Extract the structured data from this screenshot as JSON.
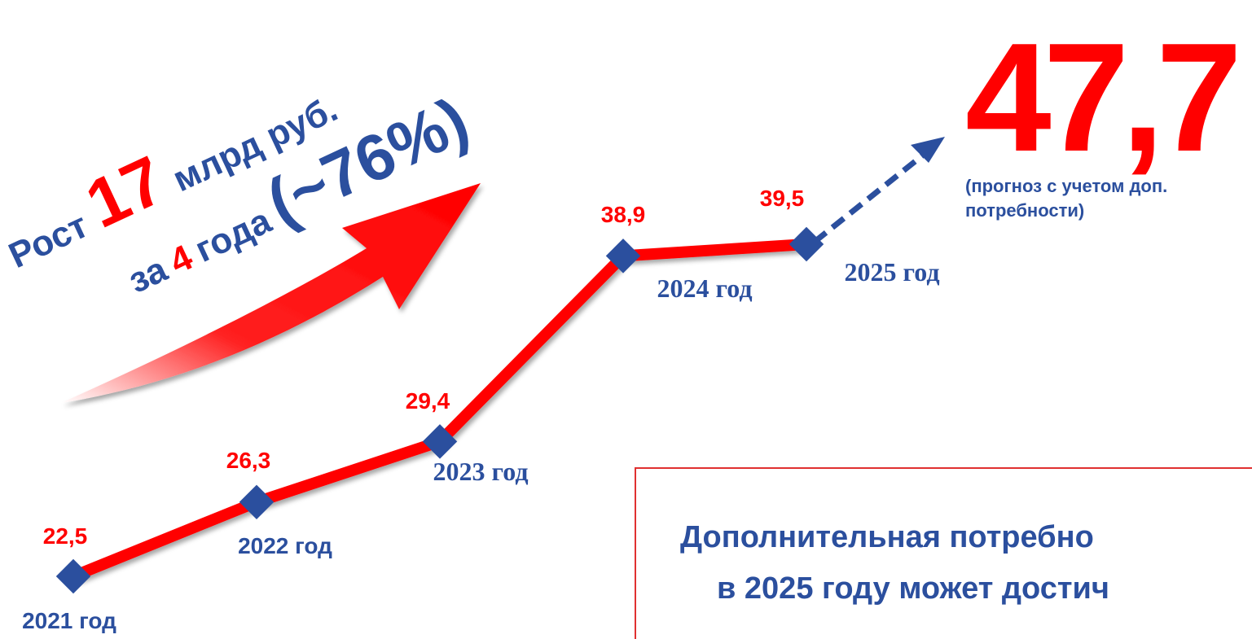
{
  "chart_data": {
    "type": "line",
    "categories": [
      "2021 год",
      "2022 год",
      "2023 год",
      "2024 год",
      "2025 год"
    ],
    "values": [
      22.5,
      26.3,
      29.4,
      38.9,
      39.5
    ],
    "value_labels": [
      "22,5",
      "26,3",
      "29,4",
      "38,9",
      "39,5"
    ],
    "color": "#ff0000",
    "marker_color": "#2b4f9e",
    "forecast": {
      "label": "47,7",
      "note": "(прогноз с учетом доп.",
      "note2": "потребности)"
    },
    "growth": {
      "word": "Рост",
      "amount": "17",
      "unit": "млрд руб.",
      "over": "за",
      "years": "4",
      "years_word": "года",
      "percent": "(~76%)"
    },
    "box": {
      "lines": [
        "Дополнительная потребно",
        "в 2025 году может достич"
      ]
    }
  }
}
